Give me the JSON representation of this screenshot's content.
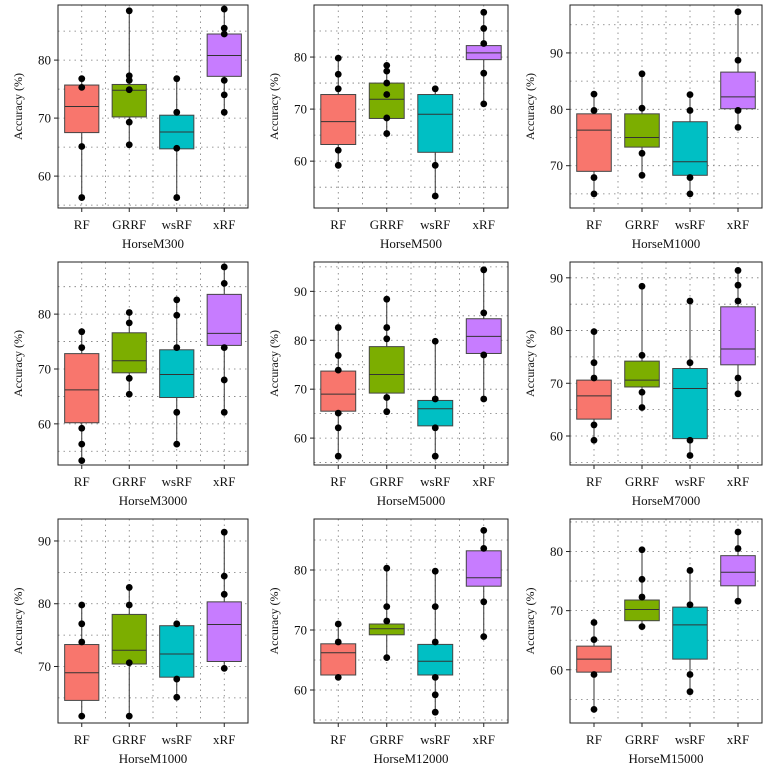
{
  "palette": {
    "RF": "#f8766d",
    "GRRF": "#7cae00",
    "wsRF": "#00bfc4",
    "xRF": "#c77cff"
  },
  "chart_data": [
    {
      "type": "box",
      "title": "HorseM300",
      "ylabel": "Accuracy (%)",
      "categories": [
        "RF",
        "GRRF",
        "wsRF",
        "xRF"
      ],
      "ylim": [
        54.5,
        89.5
      ],
      "yticks": [
        60,
        70,
        80
      ],
      "series": [
        {
          "name": "RF",
          "q1": 67.5,
          "median": 72,
          "q3": 75.7,
          "whisker_low": 56.3,
          "whisker_high": 76.8,
          "points": [
            56.3,
            65.1,
            75.3,
            76.8
          ]
        },
        {
          "name": "GRRF",
          "q1": 70.2,
          "median": 74.8,
          "q3": 75.8,
          "whisker_low": 65.4,
          "whisker_high": 88.5,
          "points": [
            65.4,
            69.3,
            74.9,
            76.5,
            77.3,
            88.5
          ]
        },
        {
          "name": "wsRF",
          "q1": 64.7,
          "median": 67.6,
          "q3": 70.5,
          "whisker_low": 56.3,
          "whisker_high": 76.8,
          "points": [
            56.3,
            64.8,
            71,
            76.8
          ]
        },
        {
          "name": "xRF",
          "q1": 77.2,
          "median": 80.8,
          "q3": 84.5,
          "whisker_low": 71,
          "whisker_high": 88.8,
          "points": [
            71,
            74,
            76.5,
            84.5,
            85.5,
            88.8
          ]
        }
      ]
    },
    {
      "type": "box",
      "title": "HorseM500",
      "ylabel": "Accuracy (%)",
      "categories": [
        "RF",
        "GRRF",
        "wsRF",
        "xRF"
      ],
      "ylim": [
        51,
        90
      ],
      "yticks": [
        60,
        70,
        80
      ],
      "series": [
        {
          "name": "RF",
          "q1": 63.2,
          "median": 67.6,
          "q3": 72.8,
          "whisker_low": 59.2,
          "whisker_high": 79.8,
          "points": [
            59.2,
            62.1,
            73.9,
            76.7,
            79.8
          ]
        },
        {
          "name": "GRRF",
          "q1": 68.2,
          "median": 71.9,
          "q3": 75,
          "whisker_low": 65.3,
          "whisker_high": 78.4,
          "points": [
            65.3,
            68.3,
            72.8,
            75,
            77.3,
            78.4
          ]
        },
        {
          "name": "wsRF",
          "q1": 61.7,
          "median": 69,
          "q3": 72.8,
          "whisker_low": 53.3,
          "whisker_high": 73.9,
          "points": [
            53.3,
            59.2,
            73.9
          ]
        },
        {
          "name": "xRF",
          "q1": 79.5,
          "median": 80.8,
          "q3": 82.2,
          "whisker_low": 71,
          "whisker_high": 88.6,
          "points": [
            71,
            76.9,
            82.6,
            85.5,
            88.6
          ]
        }
      ]
    },
    {
      "type": "box",
      "title": "HorseM1000",
      "ylabel": "Accuracy (%)",
      "categories": [
        "RF",
        "GRRF",
        "wsRF",
        "xRF"
      ],
      "ylim": [
        62.5,
        98.5
      ],
      "yticks": [
        70,
        80,
        90
      ],
      "series": [
        {
          "name": "RF",
          "q1": 69,
          "median": 76.3,
          "q3": 79.2,
          "whisker_low": 65,
          "whisker_high": 82.7,
          "points": [
            65,
            67.9,
            79.8,
            82.7
          ]
        },
        {
          "name": "GRRF",
          "q1": 73.3,
          "median": 75,
          "q3": 79.2,
          "whisker_low": 68.3,
          "whisker_high": 86.3,
          "points": [
            68.3,
            72.2,
            80.2,
            86.3
          ]
        },
        {
          "name": "wsRF",
          "q1": 68.3,
          "median": 70.7,
          "q3": 77.8,
          "whisker_low": 65,
          "whisker_high": 82.6,
          "points": [
            65,
            67.9,
            79.8,
            82.6
          ]
        },
        {
          "name": "xRF",
          "q1": 80.1,
          "median": 82.2,
          "q3": 86.6,
          "whisker_low": 76.8,
          "whisker_high": 97.3,
          "points": [
            76.8,
            79.8,
            88.7,
            97.3
          ]
        }
      ]
    },
    {
      "type": "box",
      "title": "HorseM3000",
      "ylabel": "Accuracy (%)",
      "categories": [
        "RF",
        "GRRF",
        "wsRF",
        "xRF"
      ],
      "ylim": [
        52.5,
        89.5
      ],
      "yticks": [
        60,
        70,
        80
      ],
      "series": [
        {
          "name": "RF",
          "q1": 60.2,
          "median": 66.2,
          "q3": 72.8,
          "whisker_low": 53.3,
          "whisker_high": 76.8,
          "points": [
            53.3,
            56.3,
            59.2,
            73.9,
            76.8
          ]
        },
        {
          "name": "GRRF",
          "q1": 69.3,
          "median": 71.5,
          "q3": 76.6,
          "whisker_low": 65.4,
          "whisker_high": 80.3,
          "points": [
            65.4,
            68.3,
            78.4,
            80.3
          ]
        },
        {
          "name": "wsRF",
          "q1": 64.8,
          "median": 69,
          "q3": 73.5,
          "whisker_low": 56.3,
          "whisker_high": 82.6,
          "points": [
            56.3,
            62.1,
            73.9,
            79.8,
            82.6
          ]
        },
        {
          "name": "xRF",
          "q1": 74.3,
          "median": 76.5,
          "q3": 83.6,
          "whisker_low": 62.1,
          "whisker_high": 88.6,
          "points": [
            62.1,
            68,
            73.9,
            85.6,
            88.6
          ]
        }
      ]
    },
    {
      "type": "box",
      "title": "HorseM5000",
      "ylabel": "Accuracy (%)",
      "categories": [
        "RF",
        "GRRF",
        "wsRF",
        "xRF"
      ],
      "ylim": [
        54.5,
        96
      ],
      "yticks": [
        60,
        70,
        80,
        90
      ],
      "series": [
        {
          "name": "RF",
          "q1": 65.5,
          "median": 69,
          "q3": 73.7,
          "whisker_low": 56.3,
          "whisker_high": 82.6,
          "points": [
            56.3,
            62.1,
            65.1,
            73.9,
            76.9,
            82.6
          ]
        },
        {
          "name": "GRRF",
          "q1": 69.2,
          "median": 73,
          "q3": 78.7,
          "whisker_low": 65.4,
          "whisker_high": 88.4,
          "points": [
            65.4,
            68.3,
            80.3,
            82.6,
            88.4
          ]
        },
        {
          "name": "wsRF",
          "q1": 62.5,
          "median": 66,
          "q3": 67.7,
          "whisker_low": 56.3,
          "whisker_high": 79.8,
          "points": [
            56.3,
            62.1,
            68,
            79.8
          ]
        },
        {
          "name": "xRF",
          "q1": 77.3,
          "median": 80.8,
          "q3": 84.4,
          "whisker_low": 68,
          "whisker_high": 94.4,
          "points": [
            68,
            77,
            85.6,
            94.4
          ]
        }
      ]
    },
    {
      "type": "box",
      "title": "HorseM7000",
      "ylabel": "Accuracy (%)",
      "categories": [
        "RF",
        "GRRF",
        "wsRF",
        "xRF"
      ],
      "ylim": [
        54.5,
        93
      ],
      "yticks": [
        60,
        70,
        80,
        90
      ],
      "series": [
        {
          "name": "RF",
          "q1": 63.2,
          "median": 67.6,
          "q3": 70.6,
          "whisker_low": 59.2,
          "whisker_high": 79.8,
          "points": [
            59.2,
            62.1,
            71,
            73.9,
            79.8
          ]
        },
        {
          "name": "GRRF",
          "q1": 69.3,
          "median": 70.6,
          "q3": 74.2,
          "whisker_low": 65.4,
          "whisker_high": 88.4,
          "points": [
            65.4,
            68.3,
            75.3,
            88.4
          ]
        },
        {
          "name": "wsRF",
          "q1": 59.5,
          "median": 69,
          "q3": 72.8,
          "whisker_low": 56.3,
          "whisker_high": 85.6,
          "points": [
            56.3,
            59.2,
            73.9,
            85.6
          ]
        },
        {
          "name": "xRF",
          "q1": 73.5,
          "median": 76.5,
          "q3": 84.5,
          "whisker_low": 68,
          "whisker_high": 91.4,
          "points": [
            68,
            71,
            85.6,
            88.6,
            91.4
          ]
        }
      ]
    },
    {
      "type": "box",
      "title": "HorseM1000",
      "ylabel": "Accuracy (%)",
      "categories": [
        "RF",
        "GRRF",
        "wsRF",
        "xRF"
      ],
      "ylim": [
        61,
        93.5
      ],
      "yticks": [
        70,
        80,
        90
      ],
      "series": [
        {
          "name": "RF",
          "q1": 64.6,
          "median": 69,
          "q3": 73.5,
          "whisker_low": 62.1,
          "whisker_high": 79.8,
          "points": [
            62.1,
            73.9,
            76.8,
            79.8
          ]
        },
        {
          "name": "GRRF",
          "q1": 70.4,
          "median": 72.6,
          "q3": 78.3,
          "whisker_low": 62.1,
          "whisker_high": 82.6,
          "points": [
            62.1,
            70.6,
            79.8,
            82.6
          ]
        },
        {
          "name": "wsRF",
          "q1": 68.3,
          "median": 72,
          "q3": 76.5,
          "whisker_low": 65.1,
          "whisker_high": 76.8,
          "points": [
            65.1,
            68,
            76.8
          ]
        },
        {
          "name": "xRF",
          "q1": 70.8,
          "median": 76.7,
          "q3": 80.3,
          "whisker_low": 69.7,
          "whisker_high": 91.4,
          "points": [
            69.7,
            81.5,
            84.4,
            91.4
          ]
        }
      ]
    },
    {
      "type": "box",
      "title": "HorseM12000",
      "ylabel": "Accuracy (%)",
      "categories": [
        "RF",
        "GRRF",
        "wsRF",
        "xRF"
      ],
      "ylim": [
        54.5,
        88.5
      ],
      "yticks": [
        60,
        70,
        80
      ],
      "series": [
        {
          "name": "RF",
          "q1": 62.5,
          "median": 66.2,
          "q3": 67.7,
          "whisker_low": 62.1,
          "whisker_high": 71,
          "points": [
            62.1,
            68,
            71
          ]
        },
        {
          "name": "GRRF",
          "q1": 69.2,
          "median": 70.2,
          "q3": 71,
          "whisker_low": 65.4,
          "whisker_high": 80.3,
          "points": [
            65.4,
            71.5,
            73.9,
            80.3
          ]
        },
        {
          "name": "wsRF",
          "q1": 62.5,
          "median": 64.8,
          "q3": 67.6,
          "whisker_low": 56.3,
          "whisker_high": 79.8,
          "points": [
            56.3,
            59.2,
            62.1,
            68,
            73.9,
            79.8
          ]
        },
        {
          "name": "xRF",
          "q1": 77.3,
          "median": 78.7,
          "q3": 83.2,
          "whisker_low": 68.9,
          "whisker_high": 86.6,
          "points": [
            68.9,
            74.7,
            83.6,
            86.6
          ]
        }
      ]
    },
    {
      "type": "box",
      "title": "HorseM15000",
      "ylabel": "Accuracy (%)",
      "categories": [
        "RF",
        "GRRF",
        "wsRF",
        "xRF"
      ],
      "ylim": [
        51,
        85.5
      ],
      "yticks": [
        60,
        70,
        80
      ],
      "series": [
        {
          "name": "RF",
          "q1": 59.6,
          "median": 61.8,
          "q3": 64,
          "whisker_low": 53.3,
          "whisker_high": 68,
          "points": [
            53.3,
            59.2,
            65.1,
            68
          ]
        },
        {
          "name": "GRRF",
          "q1": 68.3,
          "median": 70.2,
          "q3": 71.8,
          "whisker_low": 67.3,
          "whisker_high": 80.3,
          "points": [
            67.3,
            72.3,
            75.3,
            80.3
          ]
        },
        {
          "name": "wsRF",
          "q1": 61.8,
          "median": 67.6,
          "q3": 70.6,
          "whisker_low": 56.3,
          "whisker_high": 76.8,
          "points": [
            56.3,
            59.2,
            71,
            76.8
          ]
        },
        {
          "name": "xRF",
          "q1": 74.2,
          "median": 76.5,
          "q3": 79.3,
          "whisker_low": 71.6,
          "whisker_high": 83.3,
          "points": [
            71.6,
            80.5,
            83.3
          ]
        }
      ]
    }
  ]
}
